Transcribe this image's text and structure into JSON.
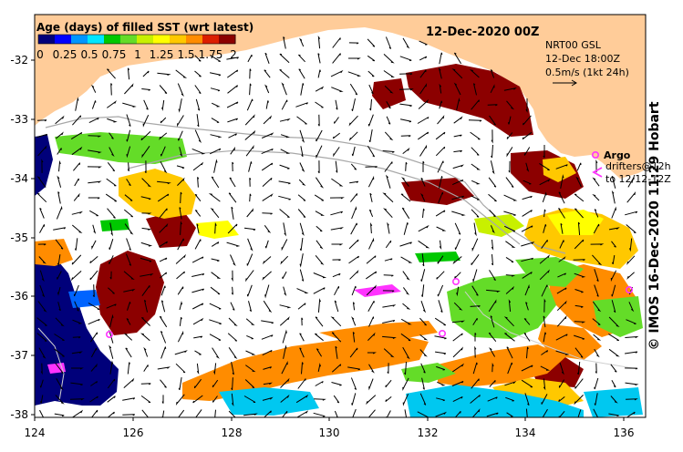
{
  "title": "12-Dec-2020 00Z",
  "colorbar": {
    "title": "Age (days) of filled SST (wrt latest)",
    "tick_labels": [
      "0",
      "0.25",
      "0.5",
      "0.75",
      "1",
      "1.25",
      "1.5",
      "1.75",
      "2"
    ],
    "colors": [
      "#00007a",
      "#0000ff",
      "#0096ff",
      "#00e6ff",
      "#00c800",
      "#64dc28",
      "#c8f000",
      "#ffff00",
      "#ffc800",
      "#ff8c00",
      "#dc1e00",
      "#8c0000"
    ]
  },
  "current_legend": {
    "line1": "NRT00 GSL",
    "line2": "12-Dec 18:00Z",
    "line3": "0.5m/s (1kt 24h)"
  },
  "argo_legend": {
    "argo_label": "Argo",
    "drifter_line1": "drifters@12h",
    "drifter_line2": "to 12/12-12Z"
  },
  "axes": {
    "y_ticks": [
      "-32",
      "-33",
      "-34",
      "-35",
      "-36",
      "-37",
      "-38"
    ],
    "x_ticks": [
      "124",
      "126",
      "128",
      "130",
      "132",
      "134",
      "136"
    ],
    "xlim": [
      124,
      136.5
    ],
    "ylim": [
      -38.1,
      -31.4
    ]
  },
  "credit": "© IMOS 16-Dec-2020 11:29 Hobart",
  "colors": {
    "land": "#ffcc99",
    "ocean": "#ffffff",
    "argo": "#ff33ff"
  }
}
